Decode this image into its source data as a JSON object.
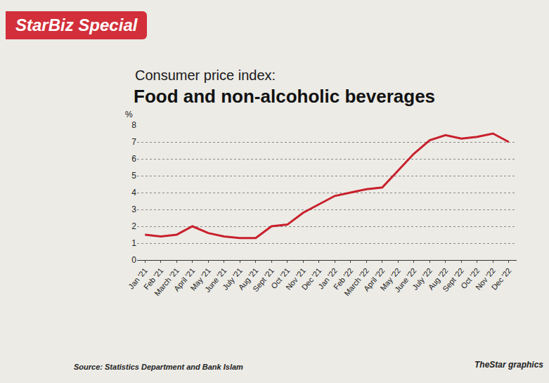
{
  "header": {
    "badge": "StarBiz Special"
  },
  "chart_data": {
    "type": "line",
    "subtitle": "Consumer price index:",
    "title": "Food and non-alcoholic beverages",
    "y_label": "%",
    "categories": [
      "Jan '21",
      "Feb '21",
      "March '21",
      "April '21",
      "May '21",
      "June '21",
      "July '21",
      "Aug '21",
      "Sept '21",
      "Oct '21",
      "Nov '21",
      "Dec '21",
      "Jan '22",
      "Feb '22",
      "March '22",
      "April '22",
      "May '22",
      "June '22",
      "July '22",
      "Aug '22",
      "Sept '22",
      "Oct '22",
      "Nov '22",
      "Dec '22"
    ],
    "values": [
      1.5,
      1.4,
      1.5,
      2.0,
      1.6,
      1.4,
      1.3,
      1.3,
      2.0,
      2.1,
      2.8,
      3.3,
      3.8,
      4.0,
      4.2,
      4.3,
      5.3,
      6.3,
      7.1,
      7.4,
      7.2,
      7.3,
      7.5,
      7.0
    ],
    "color": "#c8202c",
    "ylim": [
      0,
      8
    ],
    "yticks": [
      0,
      1,
      2,
      3,
      4,
      5,
      6,
      7,
      8
    ],
    "grid": true
  },
  "footer": {
    "source": "Source: Statistics Department and Bank Islam",
    "credit": "TheStar graphics"
  }
}
